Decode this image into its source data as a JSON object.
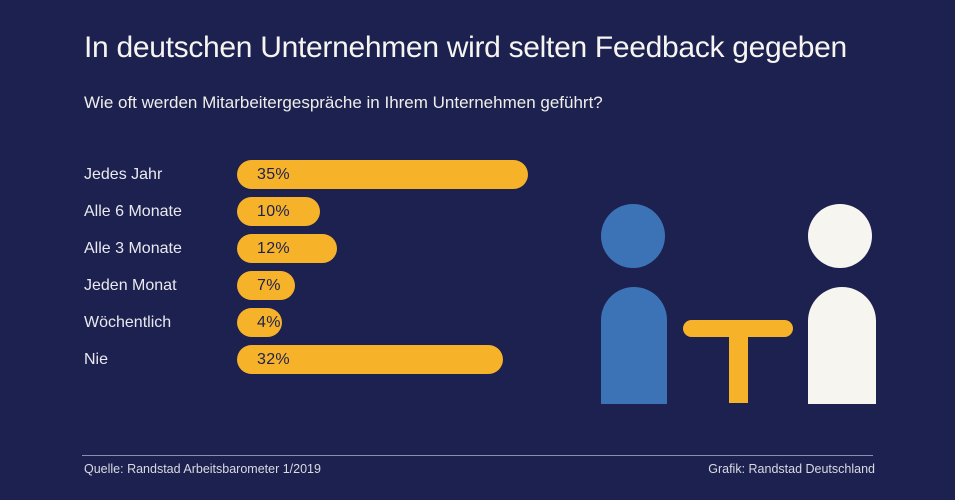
{
  "page": {
    "title": "In deutschen Unternehmen wird selten Feedback gegeben",
    "subtitle": "Wie oft werden Mitarbeitergespräche in Ihrem Unternehmen geführt?"
  },
  "chart_data": {
    "type": "bar",
    "orientation": "horizontal",
    "title": "In deutschen Unternehmen wird selten Feedback gegeben",
    "subtitle": "Wie oft werden Mitarbeitergespräche in Ihrem Unternehmen geführt?",
    "categories": [
      "Jedes Jahr",
      "Alle 6 Monate",
      "Alle 3 Monate",
      "Jeden Monat",
      "Wöchentlich",
      "Nie"
    ],
    "values": [
      35,
      10,
      12,
      7,
      4,
      32
    ],
    "value_labels": [
      "35%",
      "10%",
      "12%",
      "7%",
      "4%",
      "32%"
    ],
    "unit": "%",
    "xlabel": "",
    "ylabel": "",
    "xlim": [
      0,
      35
    ],
    "grid": false,
    "legend": false,
    "bar_color": "#F6B229",
    "value_label_position": "inside-left"
  },
  "illustration": {
    "name": "two-people-at-table",
    "left_figure_color": "#3B73B6",
    "right_figure_color": "#F7F5EF",
    "table_color": "#F6B229"
  },
  "footer": {
    "source": "Quelle: Randstad Arbeitsbarometer 1/2019",
    "credit": "Grafik: Randstad Deutschland"
  },
  "colors": {
    "background": "#1D2150",
    "title_text": "#F6F5F1",
    "label_text": "#E9E9EF",
    "bar": "#F6B229",
    "footer_line": "#8B8FA9",
    "footer_text": "#D9DAE2"
  }
}
